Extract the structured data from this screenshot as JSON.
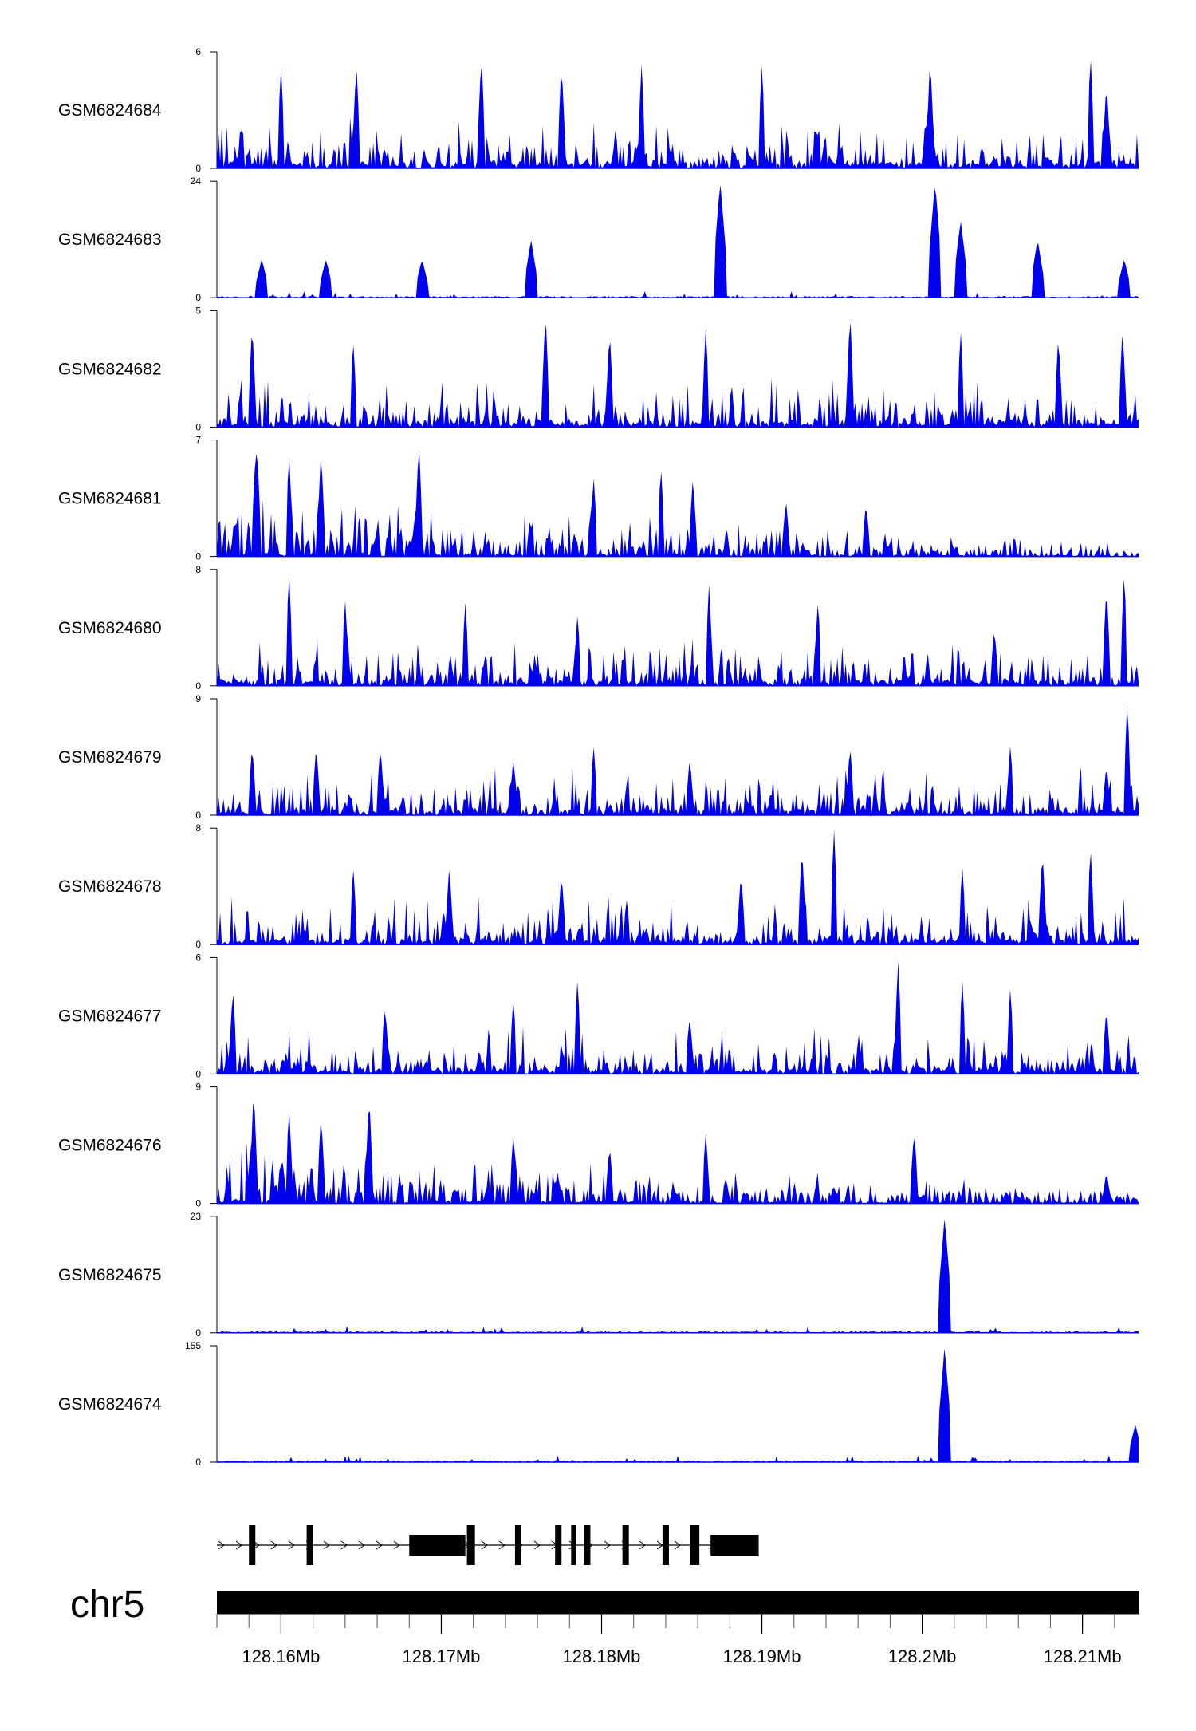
{
  "colors": {
    "signal": "#0000ee",
    "axis": "#000000",
    "gene": "#000000"
  },
  "chart_data": {
    "type": "area",
    "title": "",
    "chromosome": "chr5",
    "x_unit": "Mb",
    "xlim": [
      128.156,
      128.2135
    ],
    "x_ticks": [
      128.16,
      128.17,
      128.18,
      128.19,
      128.2,
      128.21
    ],
    "x_tick_labels": [
      "128.16Mb",
      "128.17Mb",
      "128.18Mb",
      "128.19Mb",
      "128.2Mb",
      "128.21Mb"
    ],
    "x_minor_step": 0.002,
    "tracks": [
      {
        "name": "GSM6824684",
        "ymax": 6,
        "ymin_label": "0",
        "peaks": [
          [
            128.16,
            5.3
          ],
          [
            128.1647,
            5.5
          ],
          [
            128.1725,
            6
          ],
          [
            128.1775,
            5.5
          ],
          [
            128.1825,
            5.5
          ],
          [
            128.19,
            5.5
          ],
          [
            128.2005,
            5.8
          ],
          [
            128.2105,
            6
          ],
          [
            128.2115,
            4.5
          ]
        ]
      },
      {
        "name": "GSM6824683",
        "ymax": 24,
        "ymin_label": "0",
        "peaks": [
          [
            128.1588,
            8
          ],
          [
            128.1628,
            8
          ],
          [
            128.1688,
            8
          ],
          [
            128.1756,
            12
          ],
          [
            128.1874,
            24
          ],
          [
            128.2008,
            24
          ],
          [
            128.2024,
            16
          ],
          [
            128.2072,
            12
          ],
          [
            128.2126,
            8
          ]
        ]
      },
      {
        "name": "GSM6824682",
        "ymax": 5,
        "ymin_label": "0",
        "peaks": [
          [
            128.1582,
            4.5
          ],
          [
            128.1645,
            3.8
          ],
          [
            128.1765,
            5
          ],
          [
            128.1805,
            4.2
          ],
          [
            128.1865,
            4.3
          ],
          [
            128.1955,
            5
          ],
          [
            128.2024,
            4.2
          ],
          [
            128.2085,
            4
          ],
          [
            128.2125,
            4.3
          ]
        ]
      },
      {
        "name": "GSM6824681",
        "ymax": 7,
        "ymin_label": "0",
        "peaks": [
          [
            128.1584,
            6
          ],
          [
            128.1585,
            7
          ],
          [
            128.1605,
            6.3
          ],
          [
            128.1625,
            6.5
          ],
          [
            128.1686,
            7
          ],
          [
            128.1795,
            4.9
          ],
          [
            128.1837,
            5.5
          ],
          [
            128.1857,
            4.9
          ],
          [
            128.1915,
            3.5
          ],
          [
            128.1965,
            3.3
          ]
        ]
      },
      {
        "name": "GSM6824680",
        "ymax": 8,
        "ymin_label": "0",
        "peaks": [
          [
            128.1605,
            8
          ],
          [
            128.164,
            6
          ],
          [
            128.1715,
            5.8
          ],
          [
            128.1785,
            5
          ],
          [
            128.1867,
            7
          ],
          [
            128.1935,
            6
          ],
          [
            128.2045,
            4
          ],
          [
            128.2115,
            7
          ],
          [
            128.2126,
            8
          ]
        ]
      },
      {
        "name": "GSM6824679",
        "ymax": 9,
        "ymin_label": "0",
        "peaks": [
          [
            128.1582,
            5.5
          ],
          [
            128.1622,
            5.5
          ],
          [
            128.1662,
            5.5
          ],
          [
            128.1745,
            4.5
          ],
          [
            128.1795,
            5.5
          ],
          [
            128.1855,
            4.5
          ],
          [
            128.1955,
            5.5
          ],
          [
            128.2055,
            5.5
          ],
          [
            128.2115,
            4
          ],
          [
            128.2128,
            9
          ]
        ]
      },
      {
        "name": "GSM6824678",
        "ymax": 8,
        "ymin_label": "0",
        "peaks": [
          [
            128.1645,
            5.5
          ],
          [
            128.1705,
            5.5
          ],
          [
            128.1775,
            5
          ],
          [
            128.1887,
            5
          ],
          [
            128.1925,
            6.8
          ],
          [
            128.1945,
            8
          ],
          [
            128.2025,
            5.5
          ],
          [
            128.2075,
            6.5
          ],
          [
            128.2105,
            6.8
          ]
        ]
      },
      {
        "name": "GSM6824677",
        "ymax": 6,
        "ymin_label": "0",
        "peaks": [
          [
            128.157,
            4.5
          ],
          [
            128.1665,
            3.5
          ],
          [
            128.1745,
            4
          ],
          [
            128.1785,
            5
          ],
          [
            128.1855,
            3
          ],
          [
            128.1985,
            6
          ],
          [
            128.2025,
            5
          ],
          [
            128.2055,
            4.5
          ],
          [
            128.2115,
            3.5
          ]
        ]
      },
      {
        "name": "GSM6824676",
        "ymax": 9,
        "ymin_label": "0",
        "peaks": [
          [
            128.1583,
            9
          ],
          [
            128.1605,
            7.5
          ],
          [
            128.1625,
            7
          ],
          [
            128.1655,
            8.5
          ],
          [
            128.1745,
            5.5
          ],
          [
            128.1805,
            4.5
          ],
          [
            128.1865,
            5.5
          ],
          [
            128.1995,
            5.8
          ],
          [
            128.2115,
            2.5
          ]
        ]
      },
      {
        "name": "GSM6824675",
        "ymax": 23,
        "ymin_label": "0",
        "peaks": [
          [
            128.2014,
            23
          ]
        ]
      },
      {
        "name": "GSM6824674",
        "ymax": 155,
        "ymin_label": "0",
        "peaks": [
          [
            128.2014,
            155
          ],
          [
            128.2133,
            50
          ]
        ]
      }
    ],
    "gene": {
      "strand": "+",
      "start": 128.156,
      "end": 128.1898,
      "exons": [
        [
          128.158,
          128.1584
        ],
        [
          128.1616,
          128.162
        ],
        [
          128.168,
          128.1715
        ],
        [
          128.1716,
          128.1721
        ],
        [
          128.1746,
          128.175
        ],
        [
          128.1771,
          128.1775
        ],
        [
          128.1781,
          128.1784
        ],
        [
          128.1789,
          128.1793
        ],
        [
          128.1813,
          128.1817
        ],
        [
          128.1838,
          128.1842
        ],
        [
          128.1855,
          128.1861
        ],
        [
          128.1868,
          128.1898
        ]
      ]
    }
  }
}
